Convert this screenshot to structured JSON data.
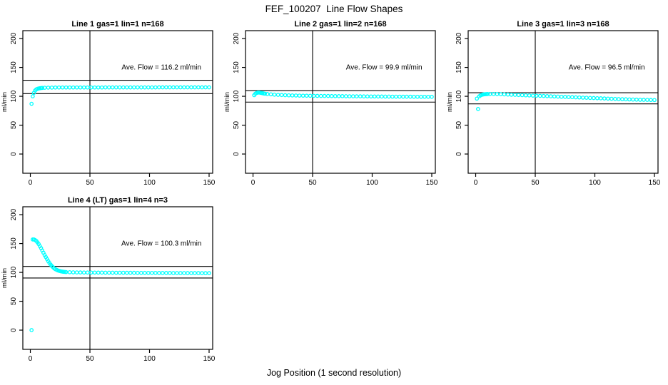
{
  "figure": {
    "title": "FEF_100207  Line Flow Shapes",
    "xlabel": "Jog Position (1 second resolution)",
    "ylabel": "ml/min",
    "point_color": "#00FFFF",
    "axis_color": "#000000"
  },
  "chart_data": [
    {
      "type": "scatter",
      "title": "Line 1 gas=1 lin=1 n=168",
      "annotation": "Ave. Flow =  116.2  ml/min",
      "ave_flow_ml_min": 116.2,
      "vline_x": 50,
      "hlines_y": [
        127.8,
        104.6
      ],
      "xticks": [
        0,
        50,
        100,
        150
      ],
      "yticks": [
        0,
        50,
        100,
        150,
        200
      ],
      "xlim": [
        -6.3,
        153
      ],
      "ylim": [
        -33.3,
        213.7
      ],
      "points": [
        [
          1,
          87
        ],
        [
          2,
          100
        ],
        [
          3,
          106
        ],
        [
          4,
          110
        ],
        [
          5,
          112
        ],
        [
          6,
          113
        ],
        [
          7,
          113.6
        ],
        [
          8,
          114
        ],
        [
          9,
          114.3
        ],
        [
          10,
          114.5
        ],
        [
          12,
          114.8
        ],
        [
          15,
          115
        ],
        [
          18,
          115.1
        ],
        [
          21,
          115.2
        ],
        [
          24,
          115.3
        ],
        [
          27,
          115.3
        ],
        [
          30,
          115.3
        ],
        [
          33,
          115.3
        ],
        [
          36,
          115.3
        ],
        [
          39,
          115.3
        ],
        [
          42,
          115.3
        ],
        [
          45,
          115.3
        ],
        [
          48,
          115.3
        ],
        [
          51,
          115.3
        ],
        [
          54,
          115.3
        ],
        [
          57,
          115.3
        ],
        [
          60,
          115.3
        ],
        [
          63,
          115.4
        ],
        [
          66,
          115.4
        ],
        [
          69,
          115.4
        ],
        [
          72,
          115.4
        ],
        [
          75,
          115.4
        ],
        [
          78,
          115.4
        ],
        [
          81,
          115.4
        ],
        [
          84,
          115.4
        ],
        [
          87,
          115.4
        ],
        [
          90,
          115.4
        ],
        [
          93,
          115.4
        ],
        [
          96,
          115.4
        ],
        [
          99,
          115.4
        ],
        [
          102,
          115.4
        ],
        [
          105,
          115.4
        ],
        [
          108,
          115.5
        ],
        [
          111,
          115.5
        ],
        [
          114,
          115.5
        ],
        [
          117,
          115.5
        ],
        [
          120,
          115.5
        ],
        [
          123,
          115.5
        ],
        [
          126,
          115.5
        ],
        [
          129,
          115.5
        ],
        [
          132,
          115.5
        ],
        [
          135,
          115.5
        ],
        [
          138,
          115.5
        ],
        [
          141,
          115.5
        ],
        [
          144,
          115.5
        ],
        [
          147,
          115.5
        ],
        [
          150,
          115.5
        ]
      ]
    },
    {
      "type": "scatter",
      "title": "Line 2 gas=1 lin=2 n=168",
      "annotation": "Ave. Flow =  99.9  ml/min",
      "ave_flow_ml_min": 99.9,
      "vline_x": 50,
      "hlines_y": [
        109.9,
        89.9
      ],
      "xticks": [
        0,
        50,
        100,
        150
      ],
      "yticks": [
        0,
        50,
        100,
        150,
        200
      ],
      "xlim": [
        -6.3,
        153
      ],
      "ylim": [
        -33.3,
        213.7
      ],
      "points": [
        [
          1,
          102
        ],
        [
          2,
          104.5
        ],
        [
          3,
          105.8
        ],
        [
          4,
          106.4
        ],
        [
          5,
          106.5
        ],
        [
          6,
          106.2
        ],
        [
          7,
          105.8
        ],
        [
          8,
          105.3
        ],
        [
          9,
          104.9
        ],
        [
          10,
          104.5
        ],
        [
          12,
          103.9
        ],
        [
          15,
          103.4
        ],
        [
          18,
          102.9
        ],
        [
          21,
          102.5
        ],
        [
          24,
          102.2
        ],
        [
          27,
          101.9
        ],
        [
          30,
          101.7
        ],
        [
          33,
          101.5
        ],
        [
          36,
          101.4
        ],
        [
          39,
          101.2
        ],
        [
          42,
          101.1
        ],
        [
          45,
          101
        ],
        [
          48,
          100.9
        ],
        [
          51,
          100.8
        ],
        [
          54,
          100.7
        ],
        [
          57,
          100.6
        ],
        [
          60,
          100.5
        ],
        [
          63,
          100.5
        ],
        [
          66,
          100.4
        ],
        [
          69,
          100.3
        ],
        [
          72,
          100.2
        ],
        [
          75,
          100.2
        ],
        [
          78,
          100.1
        ],
        [
          81,
          100
        ],
        [
          84,
          100
        ],
        [
          87,
          99.9
        ],
        [
          90,
          99.9
        ],
        [
          93,
          99.8
        ],
        [
          96,
          99.8
        ],
        [
          99,
          99.7
        ],
        [
          102,
          99.7
        ],
        [
          105,
          99.6
        ],
        [
          108,
          99.6
        ],
        [
          111,
          99.5
        ],
        [
          114,
          99.5
        ],
        [
          117,
          99.4
        ],
        [
          120,
          99.4
        ],
        [
          123,
          99.4
        ],
        [
          126,
          99.3
        ],
        [
          129,
          99.3
        ],
        [
          132,
          99.3
        ],
        [
          135,
          99.2
        ],
        [
          138,
          99.2
        ],
        [
          141,
          99.2
        ],
        [
          144,
          99.1
        ],
        [
          147,
          99.1
        ],
        [
          150,
          99.1
        ]
      ]
    },
    {
      "type": "scatter",
      "title": "Line 3 gas=1 lin=3 n=168",
      "annotation": "Ave. Flow =  96.5  ml/min",
      "ave_flow_ml_min": 96.5,
      "vline_x": 50,
      "hlines_y": [
        106.2,
        86.9
      ],
      "xticks": [
        0,
        50,
        100,
        150
      ],
      "yticks": [
        0,
        50,
        100,
        150,
        200
      ],
      "xlim": [
        -6.3,
        153
      ],
      "ylim": [
        -33.3,
        213.7
      ],
      "points": [
        [
          1,
          96
        ],
        [
          2,
          78
        ],
        [
          3,
          100
        ],
        [
          4,
          101.5
        ],
        [
          5,
          102.5
        ],
        [
          6,
          103
        ],
        [
          7,
          103.4
        ],
        [
          8,
          103.6
        ],
        [
          9,
          103.8
        ],
        [
          10,
          103.9
        ],
        [
          12,
          104
        ],
        [
          15,
          104
        ],
        [
          18,
          103.8
        ],
        [
          21,
          103.6
        ],
        [
          24,
          103.3
        ],
        [
          27,
          103
        ],
        [
          30,
          102.7
        ],
        [
          33,
          102.5
        ],
        [
          36,
          102.2
        ],
        [
          39,
          102
        ],
        [
          42,
          101.7
        ],
        [
          45,
          101.5
        ],
        [
          48,
          101.2
        ],
        [
          51,
          101
        ],
        [
          54,
          100.7
        ],
        [
          57,
          100.5
        ],
        [
          60,
          100.2
        ],
        [
          63,
          100
        ],
        [
          66,
          99.7
        ],
        [
          69,
          99.5
        ],
        [
          72,
          99.2
        ],
        [
          75,
          99
        ],
        [
          78,
          98.7
        ],
        [
          81,
          98.5
        ],
        [
          84,
          98.2
        ],
        [
          87,
          98
        ],
        [
          90,
          97.7
        ],
        [
          93,
          97.5
        ],
        [
          96,
          97.2
        ],
        [
          99,
          97
        ],
        [
          102,
          96.7
        ],
        [
          105,
          96.5
        ],
        [
          108,
          96.2
        ],
        [
          111,
          96
        ],
        [
          114,
          95.7
        ],
        [
          117,
          95.5
        ],
        [
          120,
          95.2
        ],
        [
          123,
          95
        ],
        [
          126,
          94.8
        ],
        [
          129,
          94.6
        ],
        [
          132,
          94.4
        ],
        [
          135,
          94.2
        ],
        [
          138,
          94
        ],
        [
          141,
          93.9
        ],
        [
          144,
          93.8
        ],
        [
          147,
          93.6
        ],
        [
          150,
          93.5
        ]
      ]
    },
    {
      "type": "scatter",
      "title": "Line 4 (LT) gas=1 lin=4 n=3",
      "annotation": "Ave. Flow =  100.3  ml/min",
      "ave_flow_ml_min": 100.3,
      "vline_x": 50,
      "hlines_y": [
        110.3,
        90.3
      ],
      "xticks": [
        0,
        50,
        100,
        150
      ],
      "yticks": [
        0,
        50,
        100,
        150,
        200
      ],
      "xlim": [
        -6.3,
        153
      ],
      "ylim": [
        -33.3,
        213.7
      ],
      "points": [
        [
          1,
          0
        ],
        [
          2,
          157
        ],
        [
          3,
          157
        ],
        [
          4,
          156
        ],
        [
          5,
          154.5
        ],
        [
          6,
          152
        ],
        [
          7,
          149
        ],
        [
          8,
          145.5
        ],
        [
          9,
          142
        ],
        [
          10,
          138
        ],
        [
          11,
          134
        ],
        [
          12,
          130
        ],
        [
          13,
          126.5
        ],
        [
          14,
          123
        ],
        [
          15,
          119.5
        ],
        [
          16,
          116.5
        ],
        [
          17,
          113.5
        ],
        [
          18,
          111
        ],
        [
          19,
          109
        ],
        [
          20,
          107
        ],
        [
          21,
          105.5
        ],
        [
          22,
          104.5
        ],
        [
          23,
          103.5
        ],
        [
          24,
          102.8
        ],
        [
          25,
          102.2
        ],
        [
          26,
          101.7
        ],
        [
          27,
          101.3
        ],
        [
          28,
          101
        ],
        [
          29,
          100.8
        ],
        [
          30,
          100.6
        ],
        [
          33,
          100.3
        ],
        [
          36,
          100.1
        ],
        [
          39,
          100
        ],
        [
          42,
          99.9
        ],
        [
          45,
          99.8
        ],
        [
          48,
          99.8
        ],
        [
          51,
          99.7
        ],
        [
          54,
          99.7
        ],
        [
          57,
          99.6
        ],
        [
          60,
          99.6
        ],
        [
          63,
          99.5
        ],
        [
          66,
          99.5
        ],
        [
          69,
          99.5
        ],
        [
          72,
          99.4
        ],
        [
          75,
          99.4
        ],
        [
          78,
          99.4
        ],
        [
          81,
          99.3
        ],
        [
          84,
          99.3
        ],
        [
          87,
          99.3
        ],
        [
          90,
          99.2
        ],
        [
          93,
          99.2
        ],
        [
          96,
          99.2
        ],
        [
          99,
          99.1
        ],
        [
          102,
          99.1
        ],
        [
          105,
          99.1
        ],
        [
          108,
          99
        ],
        [
          111,
          99
        ],
        [
          114,
          99
        ],
        [
          117,
          99
        ],
        [
          120,
          98.9
        ],
        [
          123,
          98.9
        ],
        [
          126,
          98.9
        ],
        [
          129,
          98.9
        ],
        [
          132,
          98.8
        ],
        [
          135,
          98.8
        ],
        [
          138,
          98.8
        ],
        [
          141,
          98.8
        ],
        [
          144,
          98.7
        ],
        [
          147,
          98.7
        ],
        [
          150,
          98.7
        ]
      ]
    }
  ]
}
